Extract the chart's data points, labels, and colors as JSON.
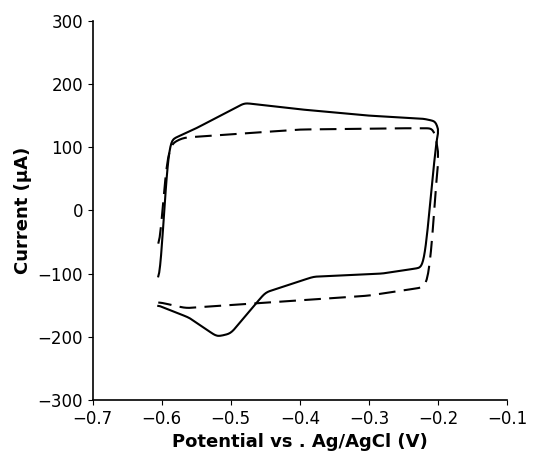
{
  "title": "",
  "xlabel": "Potential vs . Ag/AgCl (V)",
  "ylabel": "Current (μA)",
  "xlim": [
    -0.7,
    -0.1
  ],
  "ylim": [
    -300,
    300
  ],
  "xticks": [
    -0.7,
    -0.6,
    -0.5,
    -0.4,
    -0.3,
    -0.2,
    -0.1
  ],
  "yticks": [
    -300,
    -200,
    -100,
    0,
    100,
    200,
    300
  ],
  "background_color": "#ffffff",
  "line_color": "#000000",
  "xlabel_fontsize": 13,
  "ylabel_fontsize": 13,
  "tick_fontsize": 12
}
